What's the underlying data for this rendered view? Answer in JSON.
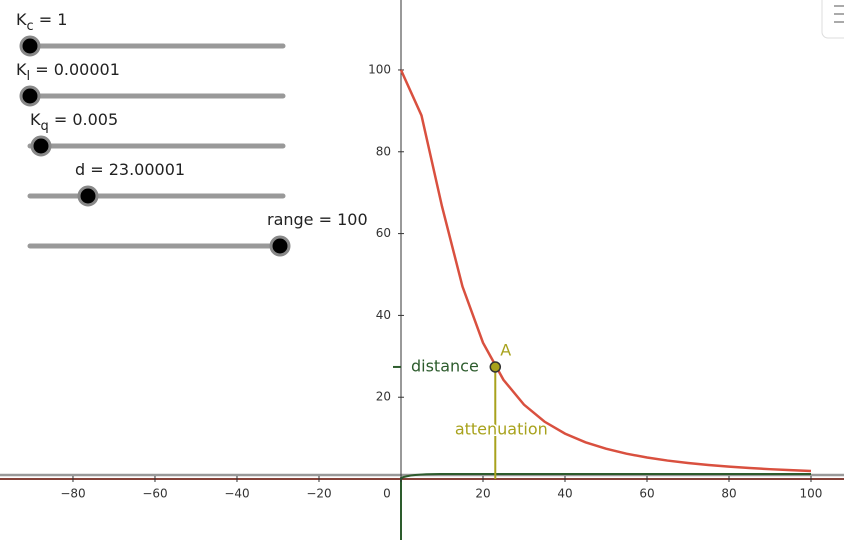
{
  "chart_data": {
    "type": "line",
    "x": [
      0,
      5,
      10,
      15,
      20,
      25,
      30,
      35,
      40,
      45,
      50,
      55,
      60,
      65,
      70,
      75,
      80,
      85,
      90,
      95,
      100
    ],
    "series": [
      {
        "color": "#d9503f",
        "values": [
          100,
          88.88,
          66.66,
          47.06,
          33.33,
          24.24,
          18.18,
          14.03,
          11.11,
          8.99,
          7.41,
          6.2,
          5.26,
          4.52,
          3.92,
          3.43,
          3.03,
          2.69,
          2.41,
          2.17,
          1.96
        ]
      }
    ],
    "xlim": [
      -97.8,
      108.05
    ],
    "ylim": [
      -14.9,
      117.1
    ],
    "xticks": [
      {
        "value": -80,
        "label": "−80"
      },
      {
        "value": -60,
        "label": "−60"
      },
      {
        "value": -40,
        "label": "−40"
      },
      {
        "value": -20,
        "label": "−20"
      },
      0,
      20,
      40,
      60,
      80,
      100
    ],
    "yticks": [
      20,
      40,
      60,
      80,
      100
    ],
    "point": {
      "name": "A",
      "x": 23.00001,
      "y": 27.4,
      "color": "#a8a21c"
    },
    "x_segment_label": "attenuation",
    "y_segment_label": "distance"
  },
  "sliders": [
    {
      "name": "K",
      "sub": "c",
      "eq": " = ",
      "value": 1
    },
    {
      "name": "K",
      "sub": "l",
      "eq": " = ",
      "value": 1e-05
    },
    {
      "name": "K",
      "sub": "q",
      "eq": " = ",
      "value": 0.005
    },
    {
      "name": "d",
      "eq": " = ",
      "value": 23.00001
    },
    {
      "name": "range",
      "eq": " = ",
      "value": 100
    }
  ]
}
